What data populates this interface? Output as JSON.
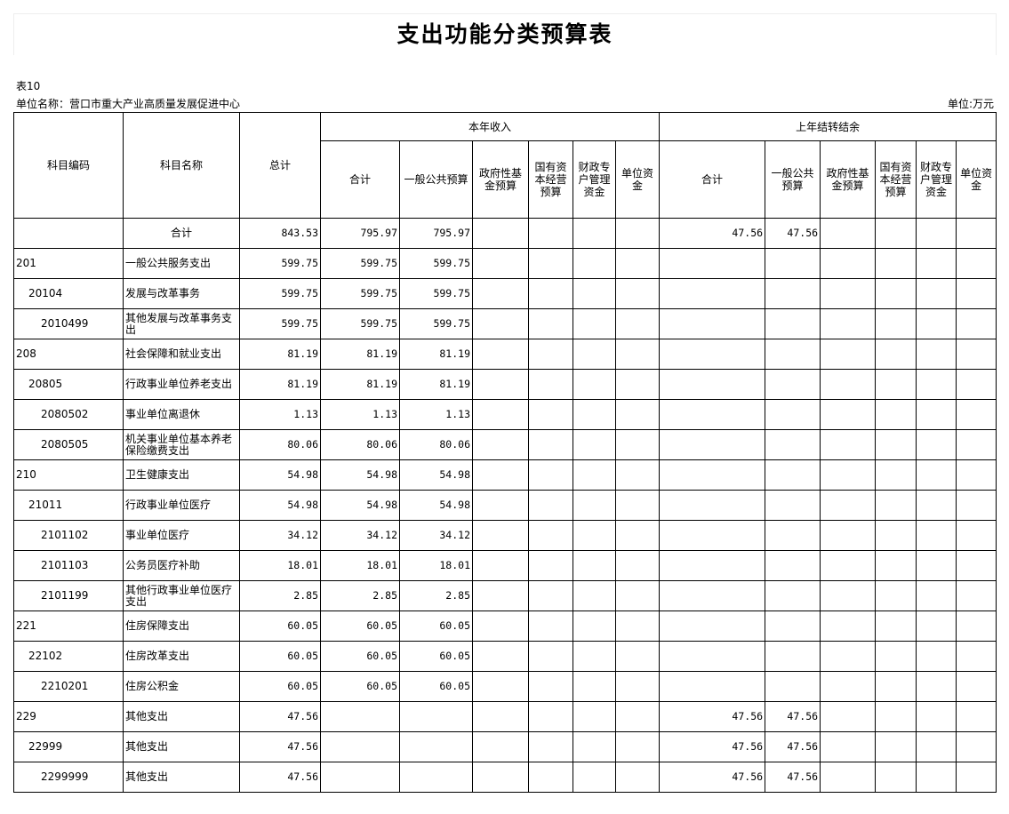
{
  "title": "支出功能分类预算表",
  "table_no": "表10",
  "unit_name": "单位名称：营口市重大产业高质量发展促进中心",
  "unit": "单位:万元",
  "headers": {
    "code": "科目编码",
    "name": "科目名称",
    "total": "总计",
    "current_year": "本年收入",
    "carryover": "上年结转结余",
    "sub": [
      "合计",
      "一般公共预算",
      "政府性基金预算",
      "国有资本经营预算",
      "财政专户管理资金",
      "单位资金"
    ]
  },
  "rows": [
    {
      "code": "",
      "level": 0,
      "name": "合计",
      "v": [
        "843.53",
        "795.97",
        "795.97",
        "",
        "",
        "",
        "",
        "47.56",
        "47.56",
        "",
        "",
        "",
        ""
      ]
    },
    {
      "code": "201",
      "level": 1,
      "name": "一般公共服务支出",
      "v": [
        "599.75",
        "599.75",
        "599.75",
        "",
        "",
        "",
        "",
        "",
        "",
        "",
        "",
        "",
        ""
      ]
    },
    {
      "code": "20104",
      "level": 2,
      "name": "发展与改革事务",
      "v": [
        "599.75",
        "599.75",
        "599.75",
        "",
        "",
        "",
        "",
        "",
        "",
        "",
        "",
        "",
        ""
      ]
    },
    {
      "code": "2010499",
      "level": 3,
      "name": "其他发展与改革事务支出",
      "v": [
        "599.75",
        "599.75",
        "599.75",
        "",
        "",
        "",
        "",
        "",
        "",
        "",
        "",
        "",
        ""
      ]
    },
    {
      "code": "208",
      "level": 1,
      "name": "社会保障和就业支出",
      "v": [
        "81.19",
        "81.19",
        "81.19",
        "",
        "",
        "",
        "",
        "",
        "",
        "",
        "",
        "",
        ""
      ]
    },
    {
      "code": "20805",
      "level": 2,
      "name": "行政事业单位养老支出",
      "v": [
        "81.19",
        "81.19",
        "81.19",
        "",
        "",
        "",
        "",
        "",
        "",
        "",
        "",
        "",
        ""
      ]
    },
    {
      "code": "2080502",
      "level": 3,
      "name": "事业单位离退休",
      "v": [
        "1.13",
        "1.13",
        "1.13",
        "",
        "",
        "",
        "",
        "",
        "",
        "",
        "",
        "",
        ""
      ]
    },
    {
      "code": "2080505",
      "level": 3,
      "name": "机关事业单位基本养老保险缴费支出",
      "v": [
        "80.06",
        "80.06",
        "80.06",
        "",
        "",
        "",
        "",
        "",
        "",
        "",
        "",
        "",
        ""
      ]
    },
    {
      "code": "210",
      "level": 1,
      "name": "卫生健康支出",
      "v": [
        "54.98",
        "54.98",
        "54.98",
        "",
        "",
        "",
        "",
        "",
        "",
        "",
        "",
        "",
        ""
      ]
    },
    {
      "code": "21011",
      "level": 2,
      "name": "行政事业单位医疗",
      "v": [
        "54.98",
        "54.98",
        "54.98",
        "",
        "",
        "",
        "",
        "",
        "",
        "",
        "",
        "",
        ""
      ]
    },
    {
      "code": "2101102",
      "level": 3,
      "name": "事业单位医疗",
      "v": [
        "34.12",
        "34.12",
        "34.12",
        "",
        "",
        "",
        "",
        "",
        "",
        "",
        "",
        "",
        ""
      ]
    },
    {
      "code": "2101103",
      "level": 3,
      "name": "公务员医疗补助",
      "v": [
        "18.01",
        "18.01",
        "18.01",
        "",
        "",
        "",
        "",
        "",
        "",
        "",
        "",
        "",
        ""
      ]
    },
    {
      "code": "2101199",
      "level": 3,
      "name": "其他行政事业单位医疗支出",
      "v": [
        "2.85",
        "2.85",
        "2.85",
        "",
        "",
        "",
        "",
        "",
        "",
        "",
        "",
        "",
        ""
      ]
    },
    {
      "code": "221",
      "level": 1,
      "name": "住房保障支出",
      "v": [
        "60.05",
        "60.05",
        "60.05",
        "",
        "",
        "",
        "",
        "",
        "",
        "",
        "",
        "",
        ""
      ]
    },
    {
      "code": "22102",
      "level": 2,
      "name": "住房改革支出",
      "v": [
        "60.05",
        "60.05",
        "60.05",
        "",
        "",
        "",
        "",
        "",
        "",
        "",
        "",
        "",
        ""
      ]
    },
    {
      "code": "2210201",
      "level": 3,
      "name": "住房公积金",
      "v": [
        "60.05",
        "60.05",
        "60.05",
        "",
        "",
        "",
        "",
        "",
        "",
        "",
        "",
        "",
        ""
      ]
    },
    {
      "code": "229",
      "level": 1,
      "name": "其他支出",
      "v": [
        "47.56",
        "",
        "",
        "",
        "",
        "",
        "",
        "47.56",
        "47.56",
        "",
        "",
        "",
        ""
      ]
    },
    {
      "code": "22999",
      "level": 2,
      "name": "其他支出",
      "v": [
        "47.56",
        "",
        "",
        "",
        "",
        "",
        "",
        "47.56",
        "47.56",
        "",
        "",
        "",
        ""
      ]
    },
    {
      "code": "2299999",
      "level": 3,
      "name": "其他支出",
      "v": [
        "47.56",
        "",
        "",
        "",
        "",
        "",
        "",
        "47.56",
        "47.56",
        "",
        "",
        "",
        ""
      ]
    }
  ]
}
